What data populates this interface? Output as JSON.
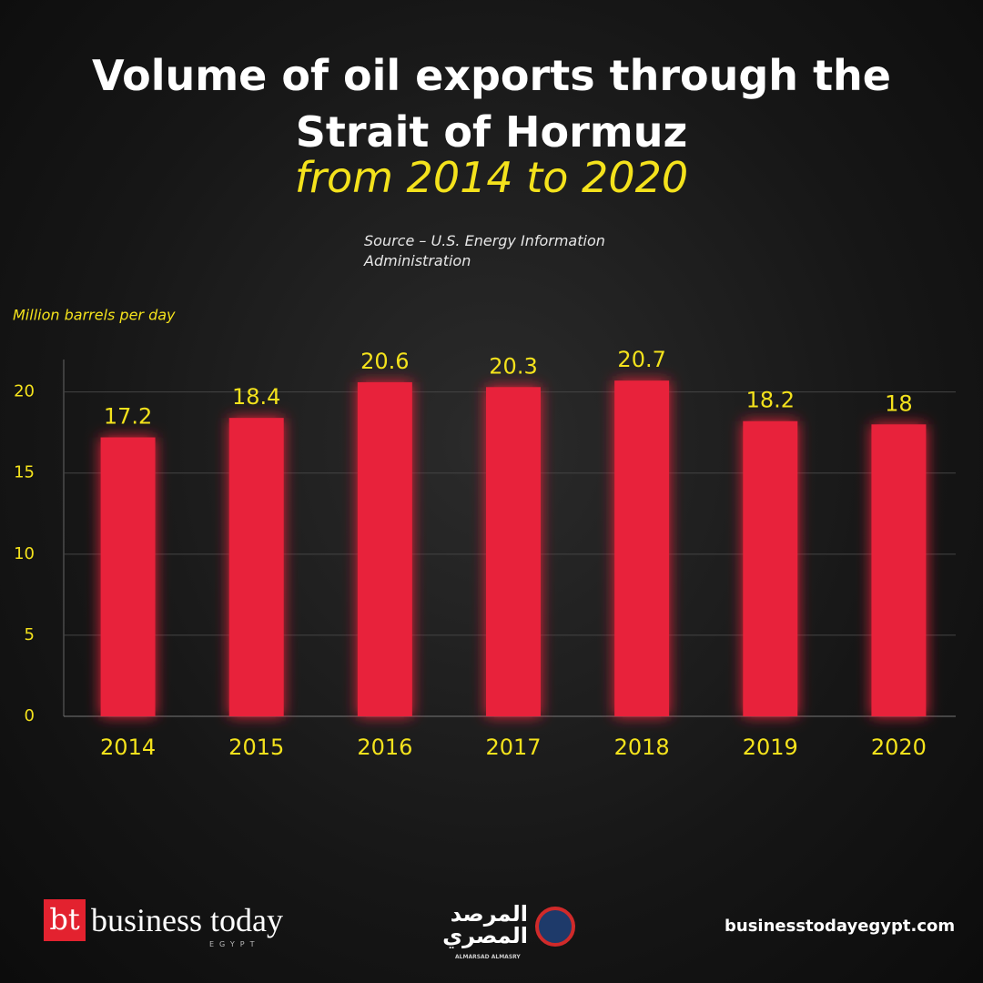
{
  "chart_data": {
    "type": "bar",
    "title": "Volume of oil exports through the Strait of Hormuz",
    "subtitle": "from 2014 to 2020",
    "source": "Source –  U.S. Energy Information Administration",
    "y_label": "Million barrels per day",
    "categories": [
      "2014",
      "2015",
      "2016",
      "2017",
      "2018",
      "2019",
      "2020"
    ],
    "values": [
      17.2,
      18.4,
      20.6,
      20.3,
      20.7,
      18.2,
      18
    ],
    "color": "#e8203a",
    "ylim": [
      0,
      22
    ],
    "yticks": [
      0,
      5,
      10,
      15,
      20
    ],
    "grid": true
  },
  "footer": {
    "brand": "business today",
    "brand_sub": "EGYPT",
    "logo_mark": "bt",
    "partner": "المرصد المصري",
    "partner_sub": "ALMARSAD ALMASRY",
    "website": "businesstodayegypt.com"
  }
}
